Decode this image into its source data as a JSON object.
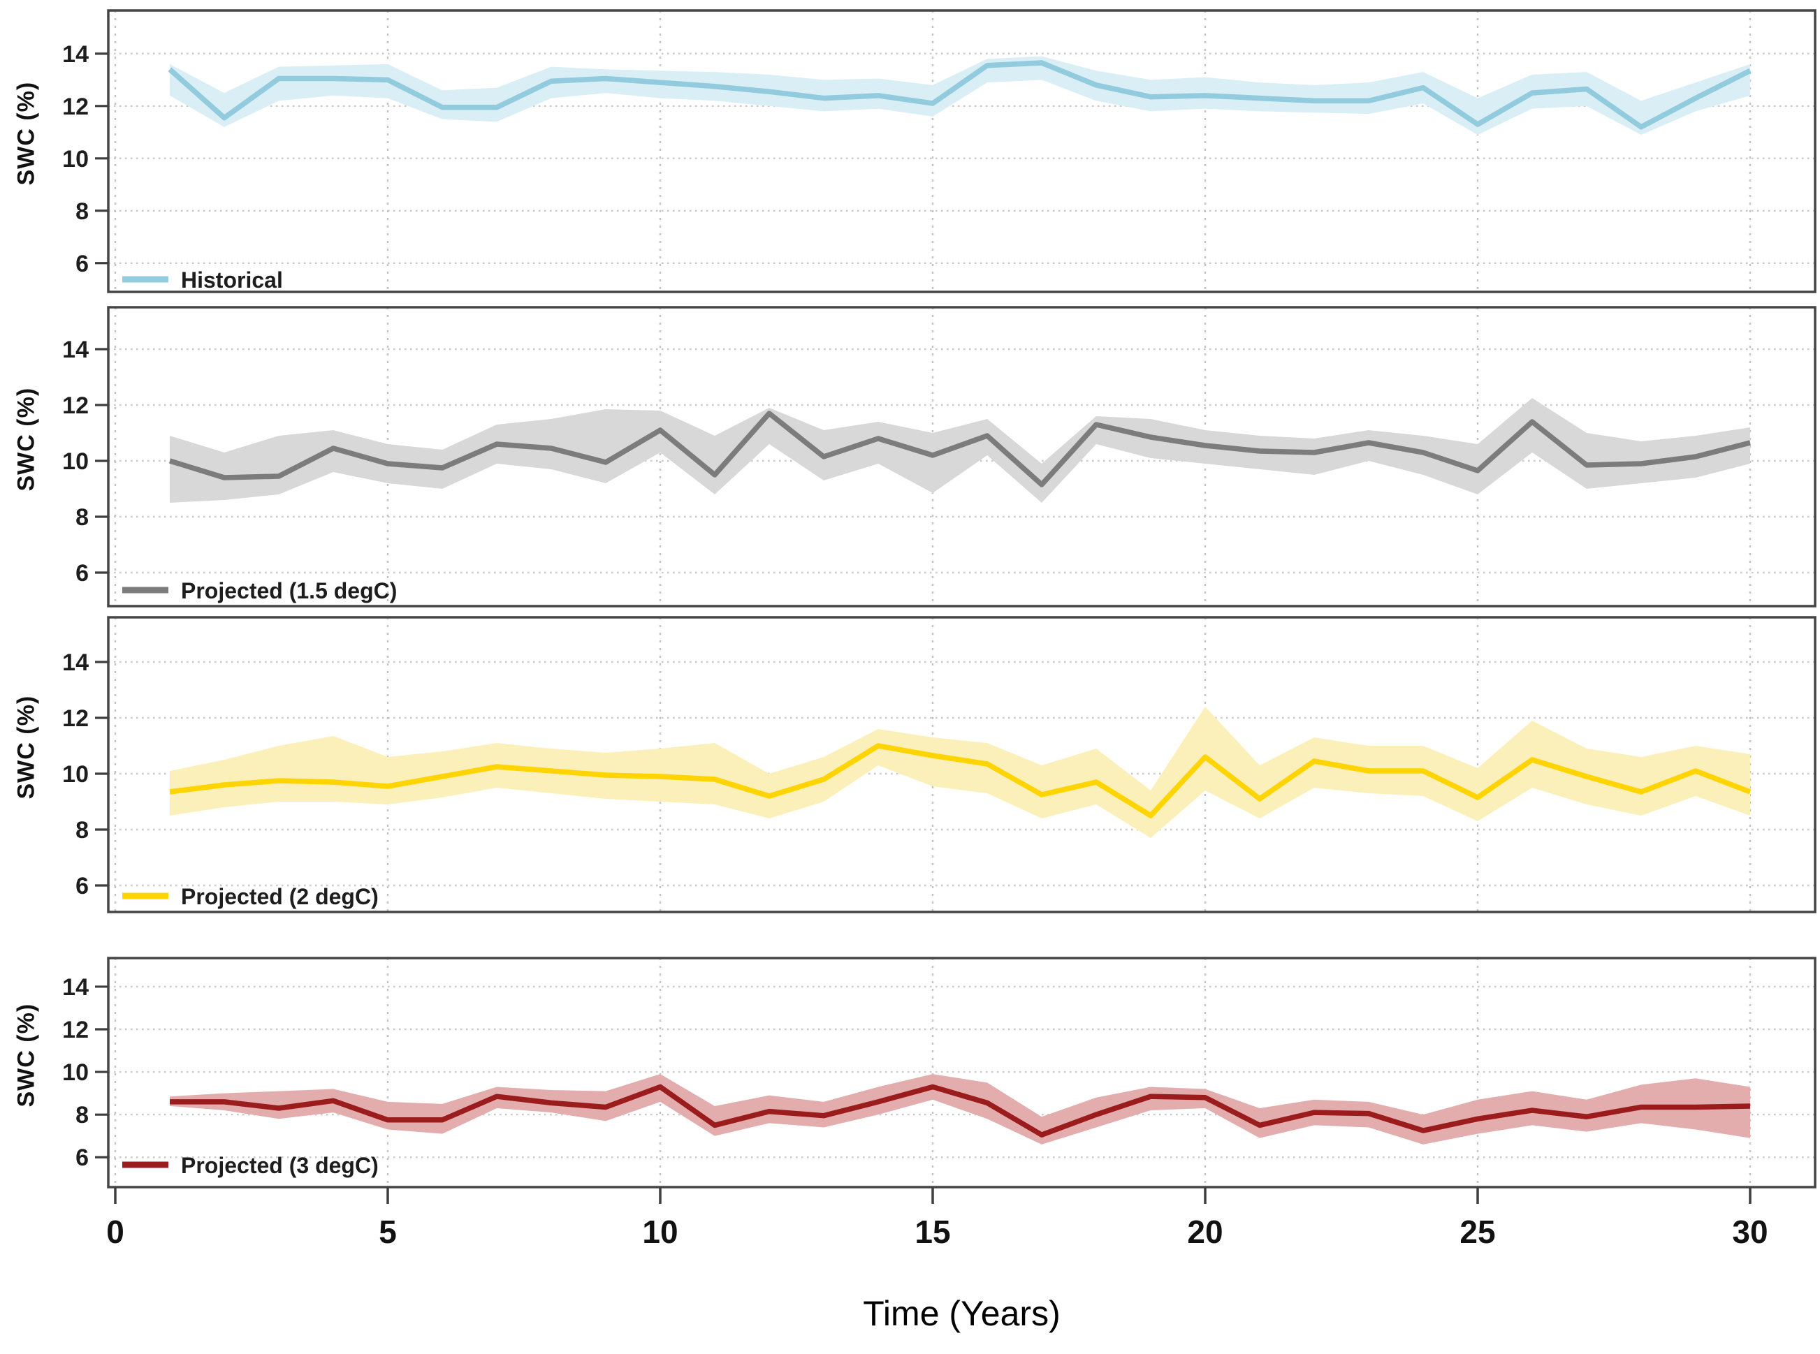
{
  "figure": {
    "y_axis_label": "SWC  (%)",
    "x_axis_label": "Time (Years)"
  },
  "chart_data": {
    "type": "line",
    "title": "",
    "xlabel": "Time (Years)",
    "ylabel": "SWC  (%)",
    "grid": true,
    "legend_position": "bottom-left-inside",
    "xticks": [
      0,
      5,
      10,
      15,
      20,
      25,
      30
    ],
    "yticks": [
      14,
      12,
      10,
      8,
      6
    ],
    "x_years": [
      1,
      2,
      3,
      4,
      5,
      6,
      7,
      8,
      9,
      10,
      11,
      12,
      13,
      14,
      15,
      16,
      17,
      18,
      19,
      20,
      21,
      22,
      23,
      24,
      25,
      26,
      27,
      28,
      29,
      30
    ],
    "panels": [
      {
        "name": "historical",
        "legend": "Historical",
        "line_color": "#91CBDD",
        "band_color": "#DAEEF5",
        "ylim": [
          4.9,
          15.65
        ],
        "values": [
          13.4,
          11.55,
          13.05,
          13.05,
          13.0,
          11.95,
          11.95,
          12.95,
          13.05,
          12.9,
          12.75,
          12.55,
          12.3,
          12.4,
          12.1,
          13.55,
          13.65,
          12.8,
          12.35,
          12.4,
          12.3,
          12.2,
          12.2,
          12.7,
          11.3,
          12.5,
          12.65,
          11.2,
          12.3,
          13.35
        ],
        "band_upper": [
          13.6,
          12.5,
          13.5,
          13.55,
          13.6,
          12.6,
          12.7,
          13.5,
          13.4,
          13.35,
          13.3,
          13.2,
          13.0,
          13.05,
          12.8,
          13.8,
          13.9,
          13.35,
          13.0,
          13.1,
          12.9,
          12.8,
          12.9,
          13.3,
          12.3,
          13.2,
          13.3,
          12.2,
          12.9,
          13.6
        ],
        "band_lower": [
          12.4,
          11.2,
          12.2,
          12.4,
          12.3,
          11.5,
          11.4,
          12.3,
          12.5,
          12.3,
          12.2,
          12.0,
          11.8,
          11.9,
          11.6,
          12.9,
          13.0,
          12.2,
          11.8,
          11.9,
          11.8,
          11.75,
          11.7,
          12.1,
          10.9,
          11.9,
          12.0,
          10.9,
          11.8,
          12.4
        ]
      },
      {
        "name": "projected-1-5",
        "legend": "Projected (1.5 degC)",
        "line_color": "#7C7C7C",
        "band_color": "#D8D8D8",
        "ylim": [
          4.8,
          15.5
        ],
        "values": [
          10.0,
          9.4,
          9.45,
          10.45,
          9.9,
          9.75,
          10.6,
          10.45,
          9.95,
          11.1,
          9.5,
          11.7,
          10.15,
          10.8,
          10.2,
          10.9,
          9.15,
          11.3,
          10.85,
          10.55,
          10.35,
          10.3,
          10.65,
          10.3,
          9.65,
          11.4,
          9.85,
          9.9,
          10.15,
          10.65
        ],
        "band_upper": [
          10.9,
          10.3,
          10.9,
          11.1,
          10.6,
          10.4,
          11.3,
          11.5,
          11.85,
          11.8,
          10.9,
          11.9,
          11.1,
          11.4,
          11.0,
          11.5,
          9.9,
          11.6,
          11.5,
          11.1,
          10.9,
          10.8,
          11.1,
          10.9,
          10.6,
          12.25,
          11.0,
          10.7,
          10.9,
          11.2
        ],
        "band_lower": [
          8.5,
          8.6,
          8.8,
          9.6,
          9.2,
          9.0,
          9.9,
          9.7,
          9.2,
          10.3,
          8.8,
          10.6,
          9.3,
          9.9,
          8.85,
          10.2,
          8.5,
          10.6,
          10.1,
          9.9,
          9.7,
          9.5,
          10.0,
          9.5,
          8.8,
          10.3,
          9.0,
          9.2,
          9.4,
          9.9
        ]
      },
      {
        "name": "projected-2",
        "legend": "Projected (2 degC)",
        "line_color": "#FFD400",
        "band_color": "#FCF0BA",
        "ylim": [
          5.05,
          15.6
        ],
        "values": [
          9.35,
          9.6,
          9.75,
          9.7,
          9.55,
          9.9,
          10.25,
          10.1,
          9.95,
          9.9,
          9.8,
          9.2,
          9.8,
          11.0,
          10.65,
          10.35,
          9.25,
          9.7,
          8.5,
          10.6,
          9.1,
          10.45,
          10.1,
          10.1,
          9.15,
          10.5,
          9.9,
          9.35,
          10.1,
          9.35
        ],
        "band_upper": [
          10.1,
          10.5,
          11.0,
          11.35,
          10.6,
          10.8,
          11.1,
          10.9,
          10.75,
          10.9,
          11.1,
          10.0,
          10.6,
          11.6,
          11.3,
          11.1,
          10.3,
          10.9,
          9.4,
          12.4,
          10.3,
          11.3,
          11.0,
          11.0,
          10.2,
          11.9,
          10.9,
          10.6,
          11.0,
          10.7
        ],
        "band_lower": [
          8.5,
          8.8,
          9.0,
          9.0,
          8.9,
          9.15,
          9.5,
          9.3,
          9.1,
          9.0,
          8.9,
          8.4,
          9.0,
          10.3,
          9.55,
          9.3,
          8.4,
          8.9,
          7.7,
          9.4,
          8.4,
          9.5,
          9.3,
          9.2,
          8.3,
          9.5,
          8.9,
          8.5,
          9.2,
          8.5
        ]
      },
      {
        "name": "projected-3",
        "legend": "Projected (3 degC)",
        "line_color": "#9B1C1C",
        "band_color": "#E4ADAD",
        "ylim": [
          4.6,
          15.34
        ],
        "values": [
          8.6,
          8.6,
          8.3,
          8.65,
          7.75,
          7.75,
          8.85,
          8.55,
          8.35,
          9.3,
          7.5,
          8.15,
          7.95,
          8.6,
          9.3,
          8.55,
          7.05,
          8.0,
          8.85,
          8.8,
          7.5,
          8.1,
          8.05,
          7.25,
          7.8,
          8.2,
          7.9,
          8.35,
          8.35,
          8.4
        ],
        "band_upper": [
          8.85,
          9.0,
          9.1,
          9.2,
          8.6,
          8.5,
          9.3,
          9.15,
          9.1,
          9.9,
          8.4,
          8.9,
          8.6,
          9.3,
          9.9,
          9.5,
          7.9,
          8.8,
          9.3,
          9.2,
          8.3,
          8.7,
          8.6,
          8.0,
          8.7,
          9.1,
          8.7,
          9.4,
          9.7,
          9.3
        ],
        "band_lower": [
          8.4,
          8.2,
          7.8,
          8.1,
          7.3,
          7.1,
          8.3,
          8.1,
          7.7,
          8.6,
          7.0,
          7.6,
          7.4,
          8.0,
          8.7,
          7.8,
          6.6,
          7.4,
          8.2,
          8.3,
          6.9,
          7.5,
          7.4,
          6.6,
          7.1,
          7.5,
          7.2,
          7.6,
          7.3,
          6.9
        ]
      }
    ]
  }
}
